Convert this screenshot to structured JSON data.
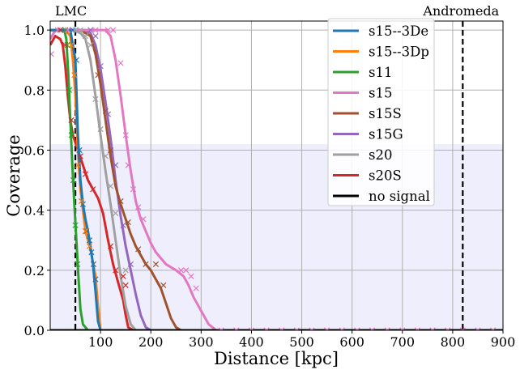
{
  "chart_data": {
    "type": "line",
    "xlabel": "Distance [kpc]",
    "ylabel": "Coverage",
    "xlim": [
      0,
      900
    ],
    "ylim": [
      0,
      1.03
    ],
    "xticks": [
      100,
      200,
      300,
      400,
      500,
      600,
      700,
      800,
      900
    ],
    "yticks": [
      0.0,
      0.2,
      0.4,
      0.6,
      0.8,
      1.0
    ],
    "grid": true,
    "legend_position": "top-right",
    "shaded_band": {
      "y0": 0.0,
      "y1": 0.62,
      "color": "#eeeefc"
    },
    "vlines": [
      {
        "x": 50,
        "label": "LMC",
        "color": "#000000"
      },
      {
        "x": 820,
        "label": "Andromeda",
        "color": "#000000"
      }
    ],
    "series": [
      {
        "name": "s15--3De",
        "color": "#1f77b4",
        "line": [
          [
            0,
            1.0
          ],
          [
            40,
            1.0
          ],
          [
            50,
            0.9
          ],
          [
            55,
            0.65
          ],
          [
            60,
            0.5
          ],
          [
            65,
            0.42
          ],
          [
            70,
            0.37
          ],
          [
            75,
            0.33
          ],
          [
            80,
            0.28
          ],
          [
            85,
            0.22
          ],
          [
            90,
            0.13
          ],
          [
            95,
            0.03
          ],
          [
            100,
            0.0
          ],
          [
            900,
            0.0
          ]
        ],
        "markers": [
          [
            45,
            1.0
          ],
          [
            52,
            0.9
          ],
          [
            58,
            0.6
          ],
          [
            65,
            0.42
          ],
          [
            72,
            0.33
          ],
          [
            78,
            0.3
          ],
          [
            82,
            0.26
          ],
          [
            86,
            0.22
          ],
          [
            90,
            0.17
          ]
        ]
      },
      {
        "name": "s15--3Dp",
        "color": "#ff7f0e",
        "line": [
          [
            0,
            1.0
          ],
          [
            30,
            1.0
          ],
          [
            40,
            0.98
          ],
          [
            45,
            0.9
          ],
          [
            50,
            0.78
          ],
          [
            55,
            0.6
          ],
          [
            60,
            0.47
          ],
          [
            65,
            0.4
          ],
          [
            70,
            0.33
          ],
          [
            80,
            0.27
          ],
          [
            90,
            0.18
          ],
          [
            95,
            0.08
          ],
          [
            100,
            0.0
          ],
          [
            900,
            0.0
          ]
        ],
        "markers": [
          [
            35,
            1.0
          ],
          [
            42,
            0.95
          ],
          [
            48,
            0.85
          ],
          [
            55,
            0.55
          ],
          [
            62,
            0.43
          ],
          [
            70,
            0.33
          ],
          [
            78,
            0.28
          ]
        ]
      },
      {
        "name": "s11",
        "color": "#2ca02c",
        "line": [
          [
            0,
            1.0
          ],
          [
            28,
            1.0
          ],
          [
            32,
            0.97
          ],
          [
            36,
            0.85
          ],
          [
            40,
            0.7
          ],
          [
            44,
            0.55
          ],
          [
            48,
            0.42
          ],
          [
            52,
            0.3
          ],
          [
            56,
            0.18
          ],
          [
            60,
            0.07
          ],
          [
            65,
            0.02
          ],
          [
            75,
            0.0
          ],
          [
            900,
            0.0
          ]
        ],
        "markers": [
          [
            30,
            1.0
          ],
          [
            34,
            0.95
          ],
          [
            38,
            0.8
          ],
          [
            42,
            0.65
          ],
          [
            46,
            0.5
          ],
          [
            50,
            0.35
          ],
          [
            54,
            0.22
          ]
        ]
      },
      {
        "name": "s15",
        "color": "#e377c2",
        "line": [
          [
            0,
            0.97
          ],
          [
            10,
            1.0
          ],
          [
            80,
            1.0
          ],
          [
            110,
            1.0
          ],
          [
            120,
            0.98
          ],
          [
            130,
            0.9
          ],
          [
            140,
            0.78
          ],
          [
            150,
            0.65
          ],
          [
            160,
            0.53
          ],
          [
            170,
            0.43
          ],
          [
            180,
            0.37
          ],
          [
            190,
            0.33
          ],
          [
            200,
            0.29
          ],
          [
            210,
            0.26
          ],
          [
            230,
            0.22
          ],
          [
            250,
            0.2
          ],
          [
            265,
            0.18
          ],
          [
            275,
            0.15
          ],
          [
            285,
            0.11
          ],
          [
            295,
            0.08
          ],
          [
            305,
            0.05
          ],
          [
            315,
            0.02
          ],
          [
            330,
            0.0
          ],
          [
            900,
            0.0
          ]
        ],
        "markers": [
          [
            2,
            0.92
          ],
          [
            15,
            1.0
          ],
          [
            35,
            1.0
          ],
          [
            90,
            1.0
          ],
          [
            115,
            1.0
          ],
          [
            125,
            1.0
          ],
          [
            140,
            0.89
          ],
          [
            150,
            0.65
          ],
          [
            155,
            0.55
          ],
          [
            165,
            0.47
          ],
          [
            175,
            0.41
          ],
          [
            185,
            0.37
          ],
          [
            260,
            0.2
          ],
          [
            270,
            0.2
          ],
          [
            280,
            0.18
          ],
          [
            290,
            0.14
          ]
        ]
      },
      {
        "name": "s15S",
        "color": "#a0522d",
        "line": [
          [
            0,
            1.0
          ],
          [
            60,
            1.0
          ],
          [
            80,
            0.98
          ],
          [
            90,
            0.92
          ],
          [
            100,
            0.82
          ],
          [
            110,
            0.7
          ],
          [
            120,
            0.58
          ],
          [
            130,
            0.48
          ],
          [
            140,
            0.42
          ],
          [
            150,
            0.37
          ],
          [
            160,
            0.32
          ],
          [
            170,
            0.28
          ],
          [
            180,
            0.25
          ],
          [
            190,
            0.22
          ],
          [
            200,
            0.2
          ],
          [
            210,
            0.17
          ],
          [
            220,
            0.14
          ],
          [
            230,
            0.09
          ],
          [
            240,
            0.04
          ],
          [
            250,
            0.01
          ],
          [
            260,
            0.0
          ],
          [
            900,
            0.0
          ]
        ],
        "markers": [
          [
            95,
            0.85
          ],
          [
            110,
            0.73
          ],
          [
            120,
            0.6
          ],
          [
            140,
            0.43
          ],
          [
            155,
            0.36
          ],
          [
            175,
            0.27
          ],
          [
            190,
            0.22
          ],
          [
            210,
            0.22
          ],
          [
            225,
            0.15
          ]
        ]
      },
      {
        "name": "s15G",
        "color": "#9467bd",
        "line": [
          [
            0,
            1.0
          ],
          [
            70,
            1.0
          ],
          [
            80,
            0.99
          ],
          [
            90,
            0.95
          ],
          [
            100,
            0.87
          ],
          [
            110,
            0.76
          ],
          [
            120,
            0.64
          ],
          [
            130,
            0.5
          ],
          [
            140,
            0.38
          ],
          [
            150,
            0.28
          ],
          [
            160,
            0.2
          ],
          [
            170,
            0.12
          ],
          [
            180,
            0.05
          ],
          [
            190,
            0.01
          ],
          [
            200,
            0.0
          ],
          [
            900,
            0.0
          ]
        ],
        "markers": [
          [
            80,
            1.0
          ],
          [
            90,
            0.98
          ],
          [
            100,
            0.88
          ],
          [
            115,
            0.72
          ],
          [
            130,
            0.55
          ],
          [
            145,
            0.35
          ],
          [
            160,
            0.22
          ]
        ]
      },
      {
        "name": "s20",
        "color": "#a0a0a0",
        "line": [
          [
            0,
            1.0
          ],
          [
            45,
            1.0
          ],
          [
            60,
            0.99
          ],
          [
            70,
            0.97
          ],
          [
            80,
            0.9
          ],
          [
            90,
            0.78
          ],
          [
            100,
            0.65
          ],
          [
            110,
            0.53
          ],
          [
            120,
            0.42
          ],
          [
            130,
            0.3
          ],
          [
            140,
            0.18
          ],
          [
            150,
            0.08
          ],
          [
            160,
            0.02
          ],
          [
            170,
            0.0
          ],
          [
            900,
            0.0
          ]
        ],
        "markers": [
          [
            50,
            1.0
          ],
          [
            60,
            1.0
          ],
          [
            70,
            0.98
          ],
          [
            80,
            0.95
          ],
          [
            90,
            0.77
          ],
          [
            100,
            0.67
          ],
          [
            110,
            0.58
          ],
          [
            120,
            0.48
          ],
          [
            130,
            0.39
          ],
          [
            150,
            0.2
          ]
        ]
      },
      {
        "name": "s20S",
        "color": "#d62728",
        "line": [
          [
            0,
            0.95
          ],
          [
            10,
            0.98
          ],
          [
            20,
            0.97
          ],
          [
            25,
            0.95
          ],
          [
            30,
            0.88
          ],
          [
            35,
            0.78
          ],
          [
            40,
            0.7
          ],
          [
            45,
            0.65
          ],
          [
            55,
            0.6
          ],
          [
            65,
            0.55
          ],
          [
            75,
            0.5
          ],
          [
            85,
            0.47
          ],
          [
            95,
            0.44
          ],
          [
            105,
            0.39
          ],
          [
            115,
            0.3
          ],
          [
            125,
            0.22
          ],
          [
            135,
            0.16
          ],
          [
            145,
            0.1
          ],
          [
            150,
            0.05
          ],
          [
            155,
            0.01
          ],
          [
            165,
            0.0
          ],
          [
            900,
            0.0
          ]
        ],
        "markers": [
          [
            20,
            1.0
          ],
          [
            30,
            0.95
          ],
          [
            42,
            0.7
          ],
          [
            60,
            0.58
          ],
          [
            70,
            0.52
          ],
          [
            85,
            0.47
          ],
          [
            120,
            0.28
          ],
          [
            130,
            0.2
          ],
          [
            145,
            0.18
          ],
          [
            150,
            0.15
          ]
        ]
      },
      {
        "name": "no signal",
        "color": "#000000",
        "line": [
          [
            0,
            0.0
          ],
          [
            900,
            0.0
          ]
        ],
        "markers": [
          [
            340,
            0.0
          ],
          [
            370,
            0.0
          ],
          [
            400,
            0.0
          ],
          [
            430,
            0.0
          ],
          [
            460,
            0.0
          ],
          [
            490,
            0.0
          ],
          [
            520,
            0.0
          ],
          [
            550,
            0.0
          ],
          [
            580,
            0.0
          ],
          [
            610,
            0.0
          ],
          [
            640,
            0.0
          ],
          [
            670,
            0.0
          ],
          [
            700,
            0.0
          ],
          [
            730,
            0.0
          ],
          [
            760,
            0.0
          ],
          [
            790,
            0.0
          ],
          [
            820,
            0.0
          ],
          [
            850,
            0.0
          ],
          [
            880,
            0.0
          ]
        ],
        "marker_color": "#e377c2"
      }
    ]
  }
}
